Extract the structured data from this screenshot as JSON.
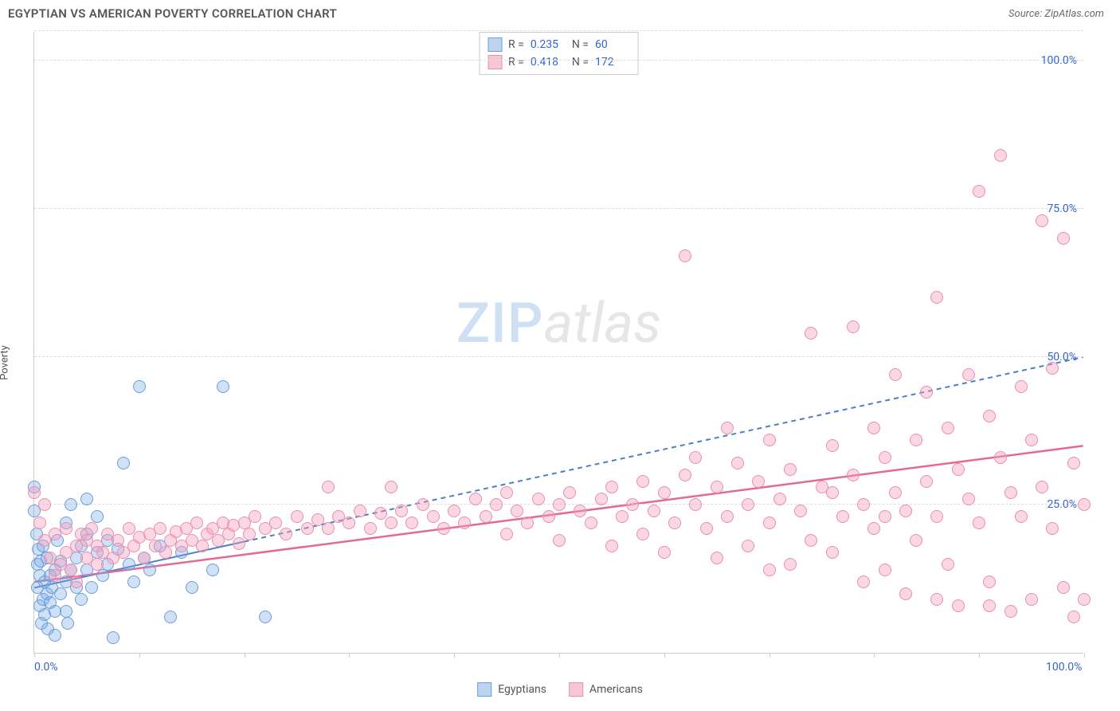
{
  "title": "EGYPTIAN VS AMERICAN POVERTY CORRELATION CHART",
  "source_label": "Source: ZipAtlas.com",
  "y_axis_label": "Poverty",
  "watermark": {
    "part1": "ZIP",
    "part2": "atlas"
  },
  "chart": {
    "type": "scatter",
    "xlim": [
      0,
      100
    ],
    "ylim": [
      0,
      105
    ],
    "x_ticks": [
      0,
      10,
      20,
      30,
      40,
      50,
      60,
      70,
      80,
      90,
      100
    ],
    "x_tick_labels": {
      "0": "0.0%",
      "100": "100.0%"
    },
    "y_gridlines": [
      25,
      50,
      75,
      100,
      105
    ],
    "y_tick_labels": {
      "25": "25.0%",
      "50": "50.0%",
      "75": "75.0%",
      "100": "100.0%"
    },
    "background_color": "#ffffff",
    "grid_color": "#dddddd",
    "axis_color": "#cccccc",
    "tick_label_color": "#3366cc",
    "marker_radius": 8,
    "marker_stroke_width": 1.2,
    "series": [
      {
        "name": "Egyptians",
        "fill": "rgba(120,170,230,0.35)",
        "stroke": "#6a9edc",
        "swatch_fill": "#bcd4f0",
        "swatch_border": "#6a9edc",
        "stats": {
          "R": "0.235",
          "N": "60"
        },
        "trend": {
          "x1": 0,
          "y1": 11,
          "x2": 100,
          "y2": 50,
          "solid_until_x": 20,
          "color": "#4a7fc9",
          "width": 2,
          "dash": "6,5"
        },
        "points": [
          [
            0,
            28
          ],
          [
            0,
            24
          ],
          [
            0.2,
            20
          ],
          [
            0.3,
            11
          ],
          [
            0.3,
            15
          ],
          [
            0.4,
            17.5
          ],
          [
            0.5,
            13
          ],
          [
            0.5,
            8
          ],
          [
            0.6,
            15.5
          ],
          [
            0.7,
            5
          ],
          [
            0.8,
            18
          ],
          [
            0.8,
            9
          ],
          [
            1,
            12
          ],
          [
            1,
            6.5
          ],
          [
            1.2,
            16
          ],
          [
            1.2,
            10
          ],
          [
            1.3,
            4
          ],
          [
            1.5,
            13
          ],
          [
            1.5,
            8.5
          ],
          [
            1.7,
            11
          ],
          [
            2,
            7
          ],
          [
            2,
            14
          ],
          [
            2,
            3
          ],
          [
            2.2,
            19
          ],
          [
            2.5,
            15.5
          ],
          [
            2.5,
            10
          ],
          [
            3,
            12
          ],
          [
            3,
            7
          ],
          [
            3,
            22
          ],
          [
            3.2,
            5
          ],
          [
            3.5,
            14
          ],
          [
            3.5,
            25
          ],
          [
            4,
            16
          ],
          [
            4,
            11
          ],
          [
            4.5,
            18
          ],
          [
            4.5,
            9
          ],
          [
            5,
            26
          ],
          [
            5,
            20
          ],
          [
            5,
            14
          ],
          [
            5.5,
            11
          ],
          [
            6,
            17
          ],
          [
            6,
            23
          ],
          [
            6.5,
            13
          ],
          [
            7,
            19
          ],
          [
            7,
            15
          ],
          [
            7.5,
            2.5
          ],
          [
            8,
            17.5
          ],
          [
            8.5,
            32
          ],
          [
            9,
            15
          ],
          [
            9.5,
            12
          ],
          [
            10,
            45
          ],
          [
            10.5,
            16
          ],
          [
            11,
            14
          ],
          [
            12,
            18
          ],
          [
            13,
            6
          ],
          [
            14,
            17
          ],
          [
            15,
            11
          ],
          [
            17,
            14
          ],
          [
            18,
            45
          ],
          [
            22,
            6
          ]
        ]
      },
      {
        "name": "Americans",
        "fill": "rgba(244,160,185,0.42)",
        "stroke": "#e88fb0",
        "swatch_fill": "#f7c7d6",
        "swatch_border": "#e88fb0",
        "stats": {
          "R": "0.418",
          "N": "172"
        },
        "trend": {
          "x1": 0,
          "y1": 12,
          "x2": 100,
          "y2": 35,
          "solid_until_x": 100,
          "color": "#e36a95",
          "width": 2.5,
          "dash": ""
        },
        "points": [
          [
            0,
            27
          ],
          [
            0.5,
            22
          ],
          [
            1,
            19
          ],
          [
            1,
            25
          ],
          [
            1.5,
            16
          ],
          [
            2,
            20
          ],
          [
            2,
            13
          ],
          [
            2.5,
            15
          ],
          [
            3,
            17
          ],
          [
            3,
            21
          ],
          [
            3.5,
            14
          ],
          [
            4,
            18
          ],
          [
            4,
            12
          ],
          [
            4.5,
            20
          ],
          [
            5,
            16
          ],
          [
            5,
            19
          ],
          [
            5.5,
            21
          ],
          [
            6,
            15
          ],
          [
            6,
            18
          ],
          [
            6.5,
            17
          ],
          [
            7,
            20
          ],
          [
            7.5,
            16
          ],
          [
            8,
            19
          ],
          [
            8.5,
            17
          ],
          [
            9,
            21
          ],
          [
            9.5,
            18
          ],
          [
            10,
            19.5
          ],
          [
            10.5,
            16
          ],
          [
            11,
            20
          ],
          [
            11.5,
            18
          ],
          [
            12,
            21
          ],
          [
            12.5,
            17
          ],
          [
            13,
            19
          ],
          [
            13.5,
            20.5
          ],
          [
            14,
            18
          ],
          [
            14.5,
            21
          ],
          [
            15,
            19
          ],
          [
            15.5,
            22
          ],
          [
            16,
            18
          ],
          [
            16.5,
            20
          ],
          [
            17,
            21
          ],
          [
            17.5,
            19
          ],
          [
            18,
            22
          ],
          [
            18.5,
            20
          ],
          [
            19,
            21.5
          ],
          [
            19.5,
            18.5
          ],
          [
            20,
            22
          ],
          [
            20.5,
            20
          ],
          [
            21,
            23
          ],
          [
            22,
            21
          ],
          [
            23,
            22
          ],
          [
            24,
            20
          ],
          [
            25,
            23
          ],
          [
            26,
            21
          ],
          [
            27,
            22.5
          ],
          [
            28,
            28
          ],
          [
            28,
            21
          ],
          [
            29,
            23
          ],
          [
            30,
            22
          ],
          [
            31,
            24
          ],
          [
            32,
            21
          ],
          [
            33,
            23.5
          ],
          [
            34,
            28
          ],
          [
            34,
            22
          ],
          [
            35,
            24
          ],
          [
            36,
            22
          ],
          [
            37,
            25
          ],
          [
            38,
            23
          ],
          [
            39,
            21
          ],
          [
            40,
            24
          ],
          [
            41,
            22
          ],
          [
            42,
            26
          ],
          [
            43,
            23
          ],
          [
            44,
            25
          ],
          [
            45,
            20
          ],
          [
            45,
            27
          ],
          [
            46,
            24
          ],
          [
            47,
            22
          ],
          [
            48,
            26
          ],
          [
            49,
            23
          ],
          [
            50,
            25
          ],
          [
            50,
            19
          ],
          [
            51,
            27
          ],
          [
            52,
            24
          ],
          [
            53,
            22
          ],
          [
            54,
            26
          ],
          [
            55,
            18
          ],
          [
            55,
            28
          ],
          [
            56,
            23
          ],
          [
            57,
            25
          ],
          [
            58,
            29
          ],
          [
            58,
            20
          ],
          [
            59,
            24
          ],
          [
            60,
            27
          ],
          [
            60,
            17
          ],
          [
            61,
            22
          ],
          [
            62,
            30
          ],
          [
            62,
            67
          ],
          [
            63,
            25
          ],
          [
            64,
            21
          ],
          [
            65,
            28
          ],
          [
            65,
            16
          ],
          [
            66,
            23
          ],
          [
            67,
            32
          ],
          [
            68,
            25
          ],
          [
            68,
            18
          ],
          [
            69,
            29
          ],
          [
            70,
            36
          ],
          [
            70,
            22
          ],
          [
            71,
            26
          ],
          [
            72,
            15
          ],
          [
            72,
            31
          ],
          [
            73,
            24
          ],
          [
            74,
            54
          ],
          [
            74,
            19
          ],
          [
            75,
            28
          ],
          [
            76,
            35
          ],
          [
            76,
            17
          ],
          [
            77,
            23
          ],
          [
            78,
            55
          ],
          [
            78,
            30
          ],
          [
            79,
            25
          ],
          [
            79,
            12
          ],
          [
            80,
            38
          ],
          [
            80,
            21
          ],
          [
            81,
            33
          ],
          [
            81,
            14
          ],
          [
            82,
            27
          ],
          [
            82,
            47
          ],
          [
            83,
            24
          ],
          [
            83,
            10
          ],
          [
            84,
            36
          ],
          [
            84,
            19
          ],
          [
            85,
            29
          ],
          [
            85,
            44
          ],
          [
            86,
            23
          ],
          [
            86,
            60
          ],
          [
            87,
            38
          ],
          [
            87,
            15
          ],
          [
            88,
            31
          ],
          [
            88,
            8
          ],
          [
            89,
            26
          ],
          [
            89,
            47
          ],
          [
            90,
            22
          ],
          [
            90,
            78
          ],
          [
            91,
            40
          ],
          [
            91,
            12
          ],
          [
            92,
            33
          ],
          [
            92,
            84
          ],
          [
            93,
            27
          ],
          [
            93,
            7
          ],
          [
            94,
            45
          ],
          [
            94,
            23
          ],
          [
            95,
            36
          ],
          [
            95,
            9
          ],
          [
            96,
            73
          ],
          [
            96,
            28
          ],
          [
            97,
            21
          ],
          [
            97,
            48
          ],
          [
            98,
            70
          ],
          [
            98,
            11
          ],
          [
            99,
            32
          ],
          [
            99,
            6
          ],
          [
            100,
            25
          ],
          [
            100,
            9
          ],
          [
            91,
            8
          ],
          [
            86,
            9
          ],
          [
            81,
            23
          ],
          [
            76,
            27
          ],
          [
            70,
            14
          ],
          [
            66,
            38
          ],
          [
            63,
            33
          ]
        ]
      }
    ]
  },
  "legend_bottom": [
    {
      "label": "Egyptians",
      "series_index": 0
    },
    {
      "label": "Americans",
      "series_index": 1
    }
  ],
  "stats_box_labels": {
    "R": "R =",
    "N": "N ="
  }
}
